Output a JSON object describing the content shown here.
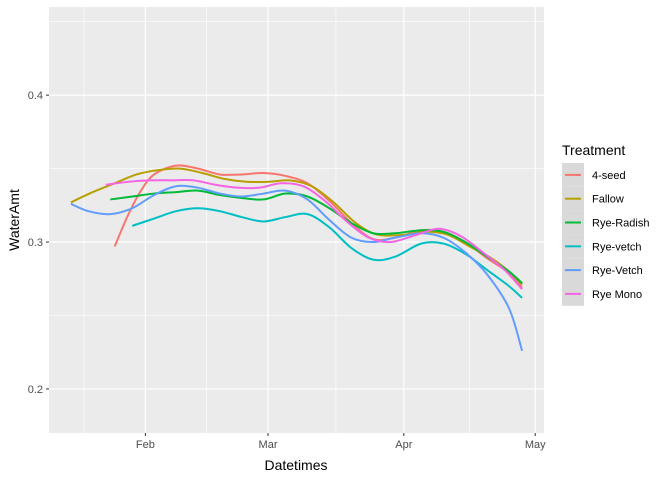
{
  "chart_data": {
    "type": "line",
    "title": "",
    "xlabel": "Datetimes",
    "ylabel": "WaterAmt",
    "x_type": "date",
    "xlim": [
      "2018-01-10",
      "2018-05-03"
    ],
    "ylim": [
      0.17,
      0.46
    ],
    "x_ticks": [
      {
        "date": "2018-02-01",
        "label": "Feb"
      },
      {
        "date": "2018-03-01",
        "label": "Mar"
      },
      {
        "date": "2018-04-01",
        "label": "Apr"
      },
      {
        "date": "2018-05-01",
        "label": "May"
      }
    ],
    "y_ticks": [
      {
        "value": 0.2,
        "label": "0.2"
      },
      {
        "value": 0.3,
        "label": "0.3"
      },
      {
        "value": 0.4,
        "label": "0.4"
      }
    ],
    "background": "#ebebeb",
    "grid": true,
    "legend": {
      "title": "Treatment",
      "position": "right"
    },
    "series": [
      {
        "name": "4-seed",
        "color": "#f8766d",
        "points": [
          [
            "2018-01-25",
            0.297
          ],
          [
            "2018-01-28",
            0.318
          ],
          [
            "2018-01-31",
            0.335
          ],
          [
            "2018-02-03",
            0.346
          ],
          [
            "2018-02-08",
            0.352
          ],
          [
            "2018-02-13",
            0.35
          ],
          [
            "2018-02-18",
            0.346
          ],
          [
            "2018-02-23",
            0.346
          ],
          [
            "2018-02-28",
            0.347
          ],
          [
            "2018-03-05",
            0.345
          ],
          [
            "2018-03-10",
            0.34
          ],
          [
            "2018-03-15",
            0.328
          ],
          [
            "2018-03-20",
            0.313
          ],
          [
            "2018-03-25",
            0.302
          ],
          [
            "2018-03-30",
            0.303
          ],
          [
            "2018-04-05",
            0.308
          ],
          [
            "2018-04-10",
            0.307
          ],
          [
            "2018-04-15",
            0.3
          ],
          [
            "2018-04-20",
            0.289
          ],
          [
            "2018-04-25",
            0.279
          ],
          [
            "2018-04-28",
            0.269
          ]
        ]
      },
      {
        "name": "Fallow",
        "color": "#b79f00",
        "points": [
          [
            "2018-01-15",
            0.327
          ],
          [
            "2018-01-20",
            0.334
          ],
          [
            "2018-01-25",
            0.34
          ],
          [
            "2018-01-30",
            0.346
          ],
          [
            "2018-02-04",
            0.349
          ],
          [
            "2018-02-09",
            0.35
          ],
          [
            "2018-02-14",
            0.347
          ],
          [
            "2018-02-19",
            0.343
          ],
          [
            "2018-02-24",
            0.341
          ],
          [
            "2018-03-01",
            0.341
          ],
          [
            "2018-03-06",
            0.342
          ],
          [
            "2018-03-11",
            0.338
          ],
          [
            "2018-03-16",
            0.327
          ],
          [
            "2018-03-21",
            0.313
          ],
          [
            "2018-03-26",
            0.305
          ],
          [
            "2018-04-01",
            0.305
          ],
          [
            "2018-04-06",
            0.307
          ],
          [
            "2018-04-11",
            0.305
          ],
          [
            "2018-04-16",
            0.297
          ],
          [
            "2018-04-21",
            0.289
          ],
          [
            "2018-04-25",
            0.28
          ],
          [
            "2018-04-28",
            0.271
          ]
        ]
      },
      {
        "name": "Rye-Radish",
        "color": "#00ba38",
        "points": [
          [
            "2018-01-24",
            0.329
          ],
          [
            "2018-01-29",
            0.331
          ],
          [
            "2018-02-03",
            0.333
          ],
          [
            "2018-02-08",
            0.334
          ],
          [
            "2018-02-13",
            0.335
          ],
          [
            "2018-02-18",
            0.332
          ],
          [
            "2018-02-23",
            0.33
          ],
          [
            "2018-02-28",
            0.329
          ],
          [
            "2018-03-05",
            0.333
          ],
          [
            "2018-03-10",
            0.331
          ],
          [
            "2018-03-15",
            0.323
          ],
          [
            "2018-03-20",
            0.313
          ],
          [
            "2018-03-25",
            0.306
          ],
          [
            "2018-03-30",
            0.306
          ],
          [
            "2018-04-05",
            0.308
          ],
          [
            "2018-04-10",
            0.307
          ],
          [
            "2018-04-15",
            0.3
          ],
          [
            "2018-04-20",
            0.29
          ],
          [
            "2018-04-25",
            0.28
          ],
          [
            "2018-04-28",
            0.272
          ]
        ]
      },
      {
        "name": "Rye-vetch",
        "color": "#00bfc4",
        "points": [
          [
            "2018-01-29",
            0.311
          ],
          [
            "2018-02-03",
            0.316
          ],
          [
            "2018-02-08",
            0.321
          ],
          [
            "2018-02-13",
            0.323
          ],
          [
            "2018-02-18",
            0.321
          ],
          [
            "2018-02-23",
            0.317
          ],
          [
            "2018-02-28",
            0.314
          ],
          [
            "2018-03-05",
            0.317
          ],
          [
            "2018-03-10",
            0.319
          ],
          [
            "2018-03-15",
            0.31
          ],
          [
            "2018-03-20",
            0.296
          ],
          [
            "2018-03-25",
            0.288
          ],
          [
            "2018-03-30",
            0.29
          ],
          [
            "2018-04-05",
            0.299
          ],
          [
            "2018-04-10",
            0.299
          ],
          [
            "2018-04-15",
            0.292
          ],
          [
            "2018-04-20",
            0.281
          ],
          [
            "2018-04-25",
            0.27
          ],
          [
            "2018-04-28",
            0.262
          ]
        ]
      },
      {
        "name": "Rye-Vetch",
        "color": "#619cff",
        "points": [
          [
            "2018-01-15",
            0.326
          ],
          [
            "2018-01-19",
            0.321
          ],
          [
            "2018-01-24",
            0.319
          ],
          [
            "2018-01-29",
            0.323
          ],
          [
            "2018-02-03",
            0.332
          ],
          [
            "2018-02-08",
            0.338
          ],
          [
            "2018-02-13",
            0.337
          ],
          [
            "2018-02-18",
            0.333
          ],
          [
            "2018-02-23",
            0.331
          ],
          [
            "2018-02-28",
            0.333
          ],
          [
            "2018-03-05",
            0.335
          ],
          [
            "2018-03-10",
            0.329
          ],
          [
            "2018-03-15",
            0.315
          ],
          [
            "2018-03-20",
            0.303
          ],
          [
            "2018-03-25",
            0.3
          ],
          [
            "2018-03-30",
            0.303
          ],
          [
            "2018-04-05",
            0.306
          ],
          [
            "2018-04-10",
            0.303
          ],
          [
            "2018-04-15",
            0.293
          ],
          [
            "2018-04-20",
            0.278
          ],
          [
            "2018-04-25",
            0.255
          ],
          [
            "2018-04-28",
            0.226
          ]
        ]
      },
      {
        "name": "Rye Mono",
        "color": "#f564e3",
        "points": [
          [
            "2018-01-23",
            0.339
          ],
          [
            "2018-01-28",
            0.341
          ],
          [
            "2018-02-02",
            0.342
          ],
          [
            "2018-02-07",
            0.342
          ],
          [
            "2018-02-12",
            0.342
          ],
          [
            "2018-02-17",
            0.339
          ],
          [
            "2018-02-22",
            0.337
          ],
          [
            "2018-02-27",
            0.337
          ],
          [
            "2018-03-04",
            0.34
          ],
          [
            "2018-03-09",
            0.338
          ],
          [
            "2018-03-14",
            0.328
          ],
          [
            "2018-03-19",
            0.314
          ],
          [
            "2018-03-24",
            0.303
          ],
          [
            "2018-03-29",
            0.3
          ],
          [
            "2018-04-04",
            0.305
          ],
          [
            "2018-04-09",
            0.309
          ],
          [
            "2018-04-14",
            0.304
          ],
          [
            "2018-04-19",
            0.293
          ],
          [
            "2018-04-24",
            0.281
          ],
          [
            "2018-04-28",
            0.268
          ]
        ]
      }
    ]
  }
}
